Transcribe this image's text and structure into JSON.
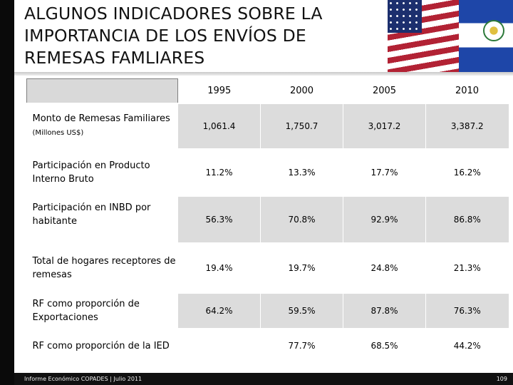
{
  "slide": {
    "title": "ALGUNOS INDICADORES SOBRE LA IMPORTANCIA DE LOS ENVÍOS DE REMESAS FAMLIARES"
  },
  "table": {
    "years": [
      "1995",
      "2000",
      "2005",
      "2010"
    ],
    "rows": [
      {
        "label": "Monto de Remesas Familiares",
        "unit": "(Millones US$)",
        "values": [
          "1,061.4",
          "1,750.7",
          "3,017.2",
          "3,387.2"
        ]
      },
      {
        "label": "Participación en Producto Interno Bruto",
        "unit": "",
        "values": [
          "11.2%",
          "13.3%",
          "17.7%",
          "16.2%"
        ]
      },
      {
        "label": "Participación en INBD por habitante",
        "unit": "",
        "values": [
          "56.3%",
          "70.8%",
          "92.9%",
          "86.8%"
        ]
      },
      {
        "label": "Total de hogares receptores de remesas",
        "unit": "",
        "values": [
          "19.4%",
          "19.7%",
          "24.8%",
          "21.3%"
        ]
      },
      {
        "label": "RF como proporción de Exportaciones",
        "unit": "",
        "values": [
          "64.2%",
          "59.5%",
          "87.8%",
          "76.3%"
        ]
      },
      {
        "label": "RF como proporción de la IED",
        "unit": "",
        "values": [
          "",
          "77.7%",
          "68.5%",
          "44.2%"
        ]
      }
    ]
  },
  "footer": {
    "left": "Informe Económico COPADES  |  Julio 2011",
    "page_number": "109"
  },
  "images": {
    "flags": [
      "us-flag",
      "el-salvador-flag"
    ]
  },
  "colors": {
    "shade": "#dcdcdc",
    "bar": "#0a0a0a"
  }
}
